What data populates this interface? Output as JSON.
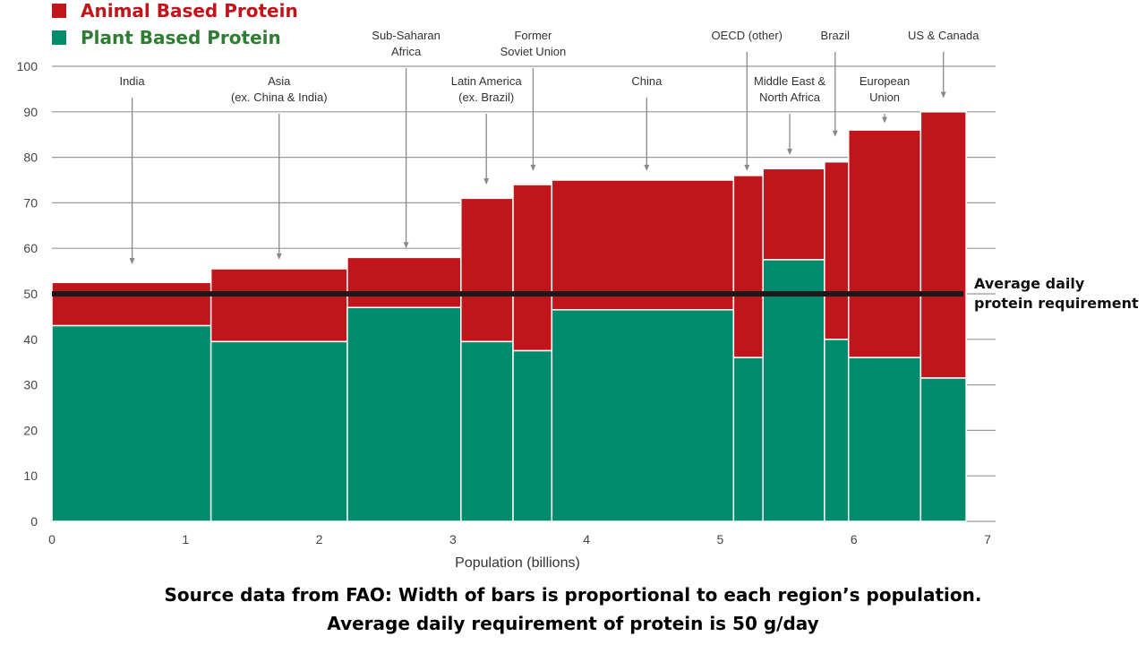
{
  "legend": {
    "animal": {
      "label": "Animal Based Protein",
      "color": "#c0151b"
    },
    "plant": {
      "label": "Plant Based Protein",
      "color": "#2e7d32"
    }
  },
  "reference_line": {
    "label_line1": "Average daily",
    "label_line2": "protein requirement",
    "value": 50,
    "color": "#1a1a1a"
  },
  "footnote": {
    "line1": "Source data from FAO:   Width of bars is proportional to each region’s population.",
    "line2": "Average daily requirement of protein is 50 g/day"
  },
  "colors": {
    "animal": "#c0151b",
    "plant": "#008c6c",
    "grid": "#999999",
    "annotation": "#888888"
  },
  "chart_data": {
    "type": "bar",
    "subtype": "variable-width stacked bar (marimekko)",
    "xlabel": "Population (billions)",
    "ylabel": "",
    "xlim": [
      0,
      7
    ],
    "ylim": [
      0,
      100
    ],
    "xticks": [
      0,
      1,
      2,
      3,
      4,
      5,
      6,
      7
    ],
    "yticks": [
      0,
      10,
      20,
      30,
      40,
      50,
      60,
      70,
      80,
      90,
      100
    ],
    "series": [
      {
        "name": "Plant Based Protein",
        "key": "plant"
      },
      {
        "name": "Animal Based Protein",
        "key": "animal"
      }
    ],
    "regions": [
      {
        "name": [
          "India"
        ],
        "x0": 0.0,
        "x1": 1.19,
        "plant": 43,
        "total": 52.5,
        "label_x": 0.6,
        "arrow_tip": 56.5
      },
      {
        "name": [
          "Asia",
          "(ex. China & India)"
        ],
        "x0": 1.19,
        "x1": 2.21,
        "plant": 39.5,
        "total": 55.5,
        "label_x": 1.7,
        "arrow_tip": 57.5
      },
      {
        "name": [
          "Sub-Saharan",
          "Africa"
        ],
        "x0": 2.21,
        "x1": 3.06,
        "plant": 47,
        "total": 58,
        "label_x": 2.65,
        "arrow_tip": 60
      },
      {
        "name": [
          "Latin America",
          "(ex. Brazil)"
        ],
        "x0": 3.06,
        "x1": 3.45,
        "plant": 39.5,
        "total": 71,
        "label_x": 3.25,
        "arrow_tip": 74
      },
      {
        "name": [
          "Former",
          "Soviet Union"
        ],
        "x0": 3.45,
        "x1": 3.74,
        "plant": 37.5,
        "total": 74,
        "label_x": 3.6,
        "arrow_tip": 77
      },
      {
        "name": [
          "China"
        ],
        "x0": 3.74,
        "x1": 5.1,
        "plant": 46.5,
        "total": 75,
        "label_x": 4.45,
        "arrow_tip": 77
      },
      {
        "name": [
          "OECD (other)"
        ],
        "x0": 5.1,
        "x1": 5.32,
        "plant": 36,
        "total": 76,
        "label_x": 5.2,
        "arrow_tip": 77
      },
      {
        "name": [
          "Middle East &",
          "North Africa"
        ],
        "x0": 5.32,
        "x1": 5.78,
        "plant": 57.5,
        "total": 77.5,
        "label_x": 5.52,
        "arrow_tip": 80.5
      },
      {
        "name": [
          "Brazil"
        ],
        "x0": 5.78,
        "x1": 5.96,
        "plant": 40,
        "total": 79,
        "label_x": 5.86,
        "arrow_tip": 84.5
      },
      {
        "name": [
          "European",
          "Union"
        ],
        "x0": 5.96,
        "x1": 6.5,
        "plant": 36,
        "total": 86,
        "label_x": 6.23,
        "arrow_tip": 87.5
      },
      {
        "name": [
          "US & Canada"
        ],
        "x0": 6.5,
        "x1": 6.84,
        "plant": 31.5,
        "total": 90,
        "label_x": 6.67,
        "arrow_tip": 93
      }
    ]
  }
}
